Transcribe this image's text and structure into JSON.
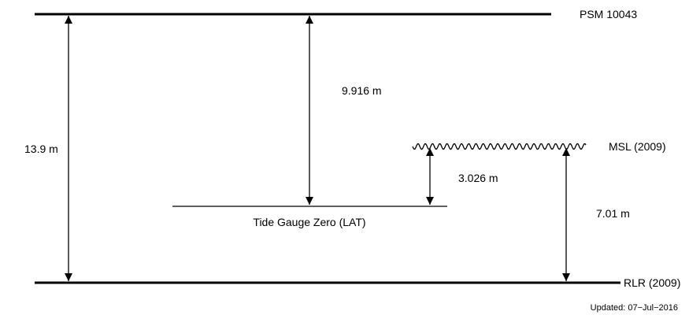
{
  "datums": {
    "psm": "PSM 10043",
    "msl": "MSL (2009)",
    "tide_gauge_zero": "Tide Gauge Zero (LAT)",
    "rlr": "RLR (2009)"
  },
  "distances": {
    "psm_to_rlr": "13.9 m",
    "psm_to_tgz": "9.916 m",
    "msl_to_tgz": "3.026 m",
    "msl_to_rlr": "7.01 m"
  },
  "updated": "Updated: 07−Jul−2016",
  "colors": {
    "line": "#000000",
    "background": "#ffffff"
  }
}
